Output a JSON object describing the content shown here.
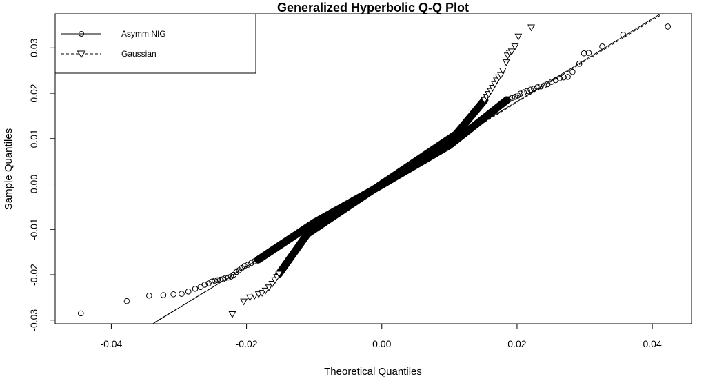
{
  "chart_data": {
    "type": "scatter",
    "title": "Generalized Hyperbolic Q-Q Plot",
    "xlabel": "Theoretical Quantiles",
    "ylabel": "Sample Quantiles",
    "xlim": [
      -0.0483,
      0.0458
    ],
    "ylim": [
      -0.0308,
      0.0375
    ],
    "x_ticks": [
      -0.04,
      -0.02,
      0.0,
      0.02,
      0.04
    ],
    "x_tick_labels": [
      "-0.04",
      "-0.02",
      "0.00",
      "0.02",
      "0.04"
    ],
    "y_ticks": [
      -0.03,
      -0.02,
      -0.01,
      0.0,
      0.01,
      0.02,
      0.03
    ],
    "y_tick_labels": [
      "-0.03",
      "-0.02",
      "-0.01",
      "0.00",
      "0.01",
      "0.02",
      "0.03"
    ],
    "legend_position": "top-left",
    "series": [
      {
        "name": "Asymm NIG",
        "marker": "circle",
        "line_style": "solid",
        "points": [
          [
            -0.0445,
            -0.0285
          ],
          [
            -0.0377,
            -0.0258
          ],
          [
            -0.0344,
            -0.0246
          ],
          [
            -0.0323,
            -0.0245
          ],
          [
            -0.0308,
            -0.0243
          ],
          [
            -0.0296,
            -0.0242
          ],
          [
            -0.0286,
            -0.0237
          ],
          [
            -0.0276,
            -0.0231
          ],
          [
            -0.0268,
            -0.0227
          ],
          [
            -0.0262,
            -0.0222
          ],
          [
            -0.0256,
            -0.0219
          ],
          [
            -0.0251,
            -0.0215
          ],
          [
            -0.0247,
            -0.0213
          ],
          [
            -0.0243,
            -0.0212
          ],
          [
            -0.0239,
            -0.0211
          ],
          [
            -0.0235,
            -0.021
          ],
          [
            -0.0231,
            -0.0207
          ],
          [
            -0.0227,
            -0.0206
          ],
          [
            -0.0223,
            -0.0204
          ],
          [
            -0.0219,
            -0.02
          ],
          [
            -0.0215,
            -0.0194
          ],
          [
            -0.0211,
            -0.019
          ],
          [
            -0.0207,
            -0.0185
          ],
          [
            -0.0203,
            -0.0181
          ],
          [
            -0.0198,
            -0.0178
          ],
          [
            -0.0193,
            -0.0174
          ],
          [
            -0.0188,
            -0.017
          ],
          [
            -0.0183,
            -0.0167
          ],
          [
            0.0185,
            0.0185
          ],
          [
            0.0189,
            0.0187
          ],
          [
            0.0193,
            0.019
          ],
          [
            0.0197,
            0.0192
          ],
          [
            0.0201,
            0.0195
          ],
          [
            0.0205,
            0.0199
          ],
          [
            0.021,
            0.0202
          ],
          [
            0.0215,
            0.0205
          ],
          [
            0.022,
            0.0208
          ],
          [
            0.0225,
            0.021
          ],
          [
            0.023,
            0.0213
          ],
          [
            0.0235,
            0.0215
          ],
          [
            0.024,
            0.0217
          ],
          [
            0.0245,
            0.022
          ],
          [
            0.0251,
            0.0225
          ],
          [
            0.0257,
            0.0229
          ],
          [
            0.0263,
            0.0233
          ],
          [
            0.0269,
            0.0235
          ],
          [
            0.0275,
            0.0236
          ],
          [
            0.0282,
            0.0247
          ],
          [
            0.0292,
            0.0265
          ],
          [
            0.0299,
            0.0288
          ],
          [
            0.0306,
            0.0289
          ],
          [
            0.0326,
            0.0303
          ],
          [
            0.0357,
            0.0329
          ],
          [
            0.0423,
            0.0347
          ]
        ],
        "dense_band": [
          [
            -0.0183,
            -0.0167
          ],
          [
            -0.01,
            -0.0085
          ],
          [
            0.0,
            -0.0002
          ],
          [
            0.01,
            0.0085
          ],
          [
            0.0185,
            0.0185
          ]
        ]
      },
      {
        "name": "Gaussian",
        "marker": "triangle-down",
        "line_style": "dashed",
        "points": [
          [
            -0.0221,
            -0.0287
          ],
          [
            -0.0204,
            -0.0259
          ],
          [
            -0.0195,
            -0.025
          ],
          [
            -0.0188,
            -0.0246
          ],
          [
            -0.0182,
            -0.0243
          ],
          [
            -0.0177,
            -0.024
          ],
          [
            -0.0172,
            -0.0235
          ],
          [
            -0.0167,
            -0.0228
          ],
          [
            -0.0162,
            -0.022
          ],
          [
            -0.0158,
            -0.0212
          ],
          [
            -0.0155,
            -0.0205
          ],
          [
            -0.0152,
            -0.0198
          ],
          [
            0.0152,
            0.0185
          ],
          [
            0.0155,
            0.0192
          ],
          [
            0.0158,
            0.0198
          ],
          [
            0.0161,
            0.0205
          ],
          [
            0.0164,
            0.0212
          ],
          [
            0.0167,
            0.022
          ],
          [
            0.017,
            0.0228
          ],
          [
            0.0173,
            0.0235
          ],
          [
            0.0176,
            0.024
          ],
          [
            0.0179,
            0.025
          ],
          [
            0.0184,
            0.0268
          ],
          [
            0.0186,
            0.0283
          ],
          [
            0.0189,
            0.0289
          ],
          [
            0.0192,
            0.0292
          ],
          [
            0.0197,
            0.0303
          ],
          [
            0.0202,
            0.0325
          ],
          [
            0.0221,
            0.0345
          ]
        ],
        "dense_band": [
          [
            -0.0152,
            -0.0198
          ],
          [
            -0.011,
            -0.011
          ],
          [
            0.0,
            0.0
          ],
          [
            0.011,
            0.011
          ],
          [
            0.0152,
            0.0185
          ]
        ]
      }
    ],
    "reference_lines": [
      {
        "series": "Asymm NIG",
        "style": "solid",
        "slope": 0.91,
        "intercept": 0.0
      },
      {
        "series": "Gaussian",
        "style": "dashed",
        "slope": 0.905,
        "intercept": -0.0001
      }
    ]
  }
}
